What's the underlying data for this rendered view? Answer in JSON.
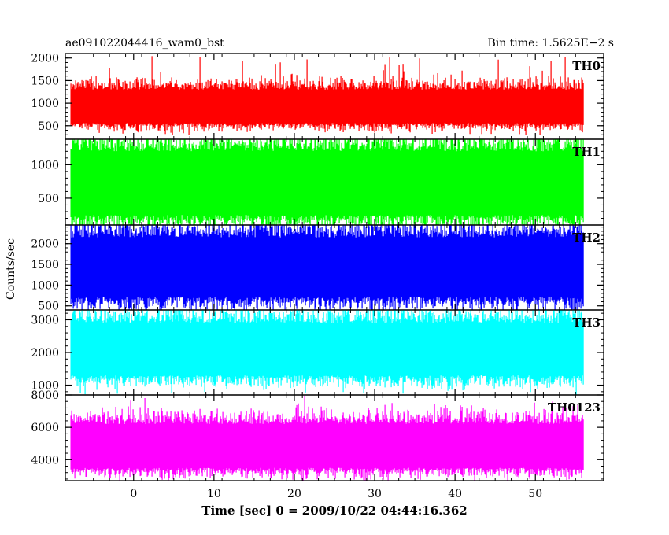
{
  "header": {
    "title": "ae091022044416_wam0_bst",
    "bin_time": "Bin time: 1.5625E−2 s"
  },
  "chart_data": {
    "type": "line",
    "title": "ae091022044416_wam0_bst",
    "subtitle": "Bin time: 1.5625E−2 s",
    "xlabel": "Time [sec] 0 = 2009/10/22 04:44:16.362",
    "ylabel": "Counts/sec",
    "xlim": [
      -8.5,
      58.5
    ],
    "x_ticks": [
      0,
      10,
      20,
      30,
      40,
      50
    ],
    "data_x_range": [
      -7.8,
      56
    ],
    "bin_time": 0.015625,
    "series": [
      {
        "name": "TH0",
        "color": "#ff0000",
        "ylim": [
          200,
          2100
        ],
        "y_ticks": [
          500,
          1000,
          1500,
          2000
        ],
        "typical_low": 560,
        "typical_high": 1300,
        "min": 280,
        "max": 2100
      },
      {
        "name": "TH1",
        "color": "#00ff00",
        "ylim": [
          100,
          1380
        ],
        "y_ticks": [
          500,
          1000
        ],
        "typical_low": 250,
        "typical_high": 1200,
        "min": 100,
        "max": 1380
      },
      {
        "name": "TH2",
        "color": "#0000ff",
        "ylim": [
          400,
          2450
        ],
        "y_ticks": [
          500,
          1000,
          1500,
          2000
        ],
        "typical_low": 720,
        "typical_high": 2150,
        "min": 400,
        "max": 2450
      },
      {
        "name": "TH3",
        "color": "#00ffff",
        "ylim": [
          700,
          3300
        ],
        "y_ticks": [
          1000,
          2000,
          3000
        ],
        "typical_low": 1300,
        "typical_high": 2900,
        "min": 700,
        "max": 3300
      },
      {
        "name": "TH0123",
        "color": "#ff00ff",
        "ylim": [
          2700,
          8000
        ],
        "y_ticks": [
          4000,
          6000,
          8000
        ],
        "typical_low": 3500,
        "typical_high": 6200,
        "min": 2700,
        "max": 8000
      }
    ]
  }
}
